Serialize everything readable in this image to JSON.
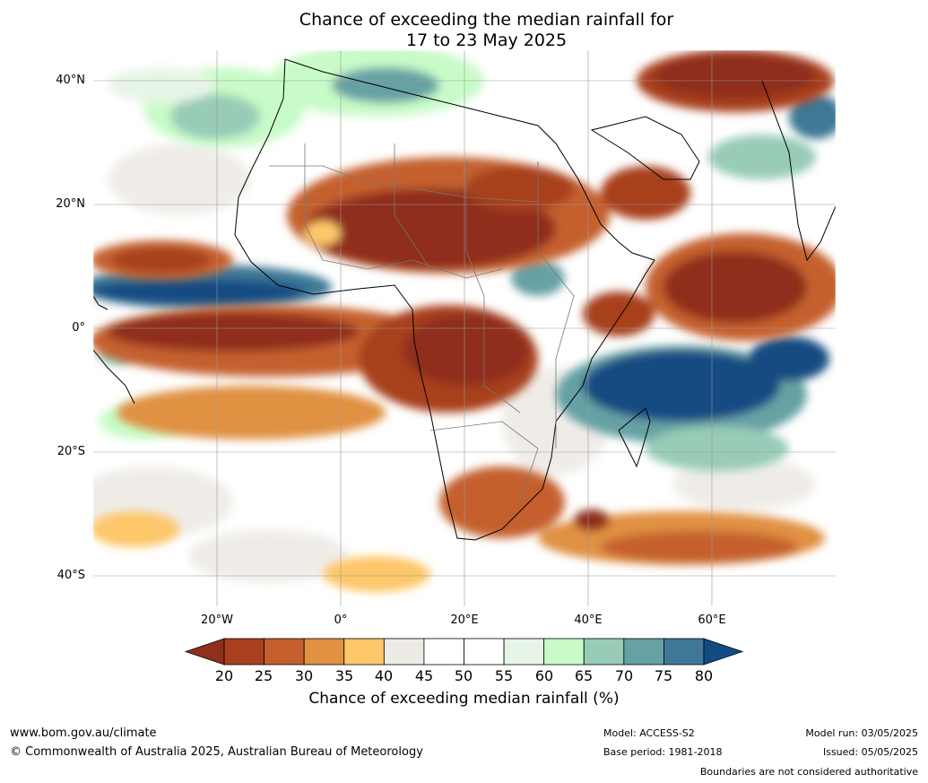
{
  "title_line1": "Chance of exceeding the median rainfall for",
  "title_line2": "17 to 23 May 2025",
  "lat_labels": [
    "40°N",
    "20°N",
    "0°",
    "20°S",
    "40°S"
  ],
  "lon_labels": [
    "20°W",
    "0°",
    "20°E",
    "40°E",
    "60°E"
  ],
  "colorbar": {
    "ticks": [
      "20",
      "25",
      "30",
      "35",
      "40",
      "45",
      "50",
      "55",
      "60",
      "65",
      "70",
      "75",
      "80"
    ],
    "label": "Chance of exceeding median rainfall (%)",
    "colors": [
      "#8f2f1c",
      "#a83f1f",
      "#c5602e",
      "#e09142",
      "#fdc76a",
      "#eeebe6",
      "#ffffff",
      "#ffffff",
      "#e7f5e6",
      "#c8fbc8",
      "#98ccb7",
      "#66a1a4",
      "#3e7896",
      "#124b82"
    ]
  },
  "footer": {
    "website": "www.bom.gov.au/climate",
    "copyright": "© Commonwealth of Australia 2025, Australian Bureau of Meteorology",
    "model": "Model: ACCESS-S2",
    "base_period": "Base period: 1981-2018",
    "model_run": "Model run: 03/05/2025",
    "issued": "Issued: 05/05/2025",
    "boundaries": "Boundaries are not considered authoritative"
  }
}
